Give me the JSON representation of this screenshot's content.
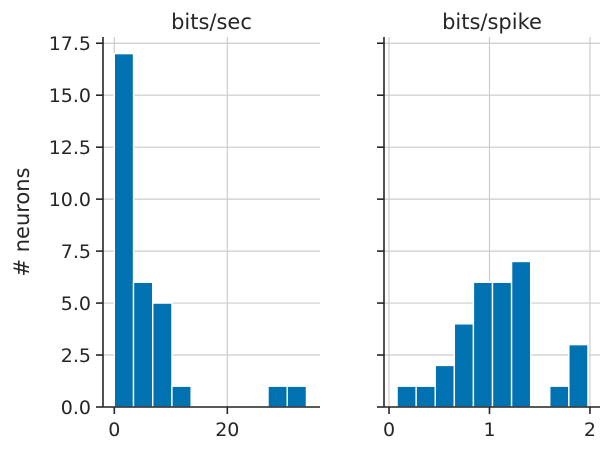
{
  "chart_data": [
    {
      "type": "bar",
      "title": "bits/sec",
      "xlabel": "",
      "ylabel": "# neurons",
      "xlim": [
        -2.0,
        36.4
      ],
      "ylim": [
        0,
        17.8
      ],
      "x_ticks": [
        0,
        20
      ],
      "x_tick_labels": [
        "0",
        "20"
      ],
      "y_ticks": [
        0.0,
        2.5,
        5.0,
        7.5,
        10.0,
        12.5,
        15.0,
        17.5
      ],
      "y_tick_labels": [
        "0.0",
        "2.5",
        "5.0",
        "7.5",
        "10.0",
        "12.5",
        "15.0",
        "17.5"
      ],
      "grid": true,
      "bin_edges": [
        0.0,
        3.4,
        6.8,
        10.2,
        13.6,
        17.0,
        20.4,
        23.8,
        27.2,
        30.6,
        34.0
      ],
      "values": [
        17,
        6,
        5,
        1,
        0,
        0,
        0,
        0,
        1,
        1
      ],
      "color": "#0072b2"
    },
    {
      "type": "bar",
      "title": "bits/spike",
      "xlabel": "",
      "ylabel": "",
      "xlim": [
        -0.05,
        2.1
      ],
      "ylim": [
        0,
        17.8
      ],
      "x_ticks": [
        0,
        1,
        2
      ],
      "x_tick_labels": [
        "0",
        "1",
        "2"
      ],
      "y_ticks": [
        0.0,
        2.5,
        5.0,
        7.5,
        10.0,
        12.5,
        15.0,
        17.5
      ],
      "grid": true,
      "sharey": true,
      "bin_edges": [
        0.08,
        0.27,
        0.46,
        0.65,
        0.84,
        1.03,
        1.22,
        1.41,
        1.6,
        1.79,
        1.98
      ],
      "values": [
        1,
        1,
        2,
        4,
        6,
        6,
        7,
        0,
        1,
        3
      ],
      "color": "#0072b2"
    }
  ]
}
